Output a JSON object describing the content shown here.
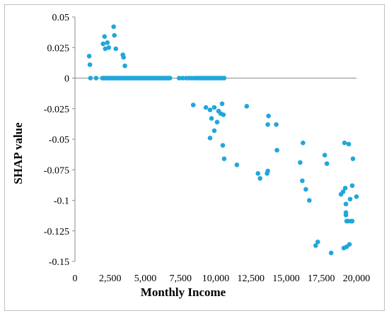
{
  "chart_data": {
    "type": "scatter",
    "title": "",
    "xlabel": "Monthly Income",
    "ylabel": "SHAP value",
    "xlim": [
      0,
      20000
    ],
    "ylim": [
      -0.15,
      0.05
    ],
    "x_ticks": [
      0,
      2500,
      5000,
      7500,
      10000,
      12500,
      15000,
      17500,
      20000
    ],
    "x_tick_labels": [
      "0",
      "2,500",
      "5,000",
      "7,500",
      "10,000",
      "12,500",
      "15,000",
      "17,500",
      "20,000"
    ],
    "y_ticks": [
      0.05,
      0.025,
      0,
      -0.025,
      -0.05,
      -0.075,
      -0.1,
      -0.125,
      -0.15
    ],
    "y_tick_labels": [
      "0.05",
      "0.025",
      "0",
      "-0.025",
      "-0.05",
      "-0.075",
      "-0.1",
      "-0.125",
      "-0.15"
    ],
    "grid": false,
    "legend": "none",
    "marker_color": "#1fa7dc",
    "points": [
      [
        1010,
        0.018
      ],
      [
        1060,
        0.011
      ],
      [
        1100,
        0
      ],
      [
        1500,
        0
      ],
      [
        2000,
        0.028
      ],
      [
        2100,
        0.034
      ],
      [
        2150,
        0.024
      ],
      [
        2300,
        0.029
      ],
      [
        2400,
        0.025
      ],
      [
        2750,
        0.042
      ],
      [
        2800,
        0.035
      ],
      [
        2900,
        0.024
      ],
      [
        3400,
        0.019
      ],
      [
        3450,
        0.017
      ],
      [
        3550,
        0.01
      ],
      [
        1950,
        0
      ],
      [
        2050,
        0
      ],
      [
        2150,
        0
      ],
      [
        2250,
        0
      ],
      [
        2350,
        0
      ],
      [
        2450,
        0
      ],
      [
        2550,
        0
      ],
      [
        2650,
        0
      ],
      [
        2750,
        0
      ],
      [
        2850,
        0
      ],
      [
        2950,
        0
      ],
      [
        3050,
        0
      ],
      [
        3150,
        0
      ],
      [
        3250,
        0
      ],
      [
        3350,
        0
      ],
      [
        3450,
        0
      ],
      [
        3550,
        0
      ],
      [
        3650,
        0
      ],
      [
        3750,
        0
      ],
      [
        3850,
        0
      ],
      [
        3950,
        0
      ],
      [
        4050,
        0
      ],
      [
        4150,
        0
      ],
      [
        4250,
        0
      ],
      [
        4350,
        0
      ],
      [
        4450,
        0
      ],
      [
        4550,
        0
      ],
      [
        4650,
        0
      ],
      [
        4750,
        0
      ],
      [
        4850,
        0
      ],
      [
        4950,
        0
      ],
      [
        5050,
        0
      ],
      [
        5150,
        0
      ],
      [
        5250,
        0
      ],
      [
        5350,
        0
      ],
      [
        5450,
        0
      ],
      [
        5550,
        0
      ],
      [
        5650,
        0
      ],
      [
        5750,
        0
      ],
      [
        5850,
        0
      ],
      [
        5950,
        0
      ],
      [
        6050,
        0
      ],
      [
        6150,
        0
      ],
      [
        6250,
        0
      ],
      [
        6350,
        0
      ],
      [
        6450,
        0
      ],
      [
        6550,
        0
      ],
      [
        6650,
        0
      ],
      [
        6750,
        0
      ],
      [
        7400,
        0
      ],
      [
        7650,
        0
      ],
      [
        7900,
        0
      ],
      [
        8100,
        0
      ],
      [
        8300,
        0
      ],
      [
        8500,
        0
      ],
      [
        8650,
        0
      ],
      [
        8800,
        0
      ],
      [
        8950,
        0
      ],
      [
        9100,
        0
      ],
      [
        9250,
        0
      ],
      [
        9400,
        0
      ],
      [
        9550,
        0
      ],
      [
        9700,
        0
      ],
      [
        9850,
        0
      ],
      [
        10000,
        0
      ],
      [
        10150,
        0
      ],
      [
        10300,
        0
      ],
      [
        10450,
        0
      ],
      [
        10600,
        0
      ],
      [
        8400,
        -0.022
      ],
      [
        9300,
        -0.024
      ],
      [
        9600,
        -0.026
      ],
      [
        9700,
        -0.033
      ],
      [
        9900,
        -0.024
      ],
      [
        10200,
        -0.027
      ],
      [
        10350,
        -0.029
      ],
      [
        10450,
        -0.021
      ],
      [
        10550,
        -0.03
      ],
      [
        9600,
        -0.049
      ],
      [
        9900,
        -0.043
      ],
      [
        10100,
        -0.036
      ],
      [
        10500,
        -0.055
      ],
      [
        10600,
        -0.066
      ],
      [
        11500,
        -0.071
      ],
      [
        12200,
        -0.023
      ],
      [
        13000,
        -0.078
      ],
      [
        13150,
        -0.082
      ],
      [
        13650,
        -0.078
      ],
      [
        13700,
        -0.076
      ],
      [
        13700,
        -0.038
      ],
      [
        13750,
        -0.031
      ],
      [
        14300,
        -0.038
      ],
      [
        14350,
        -0.059
      ],
      [
        16000,
        -0.069
      ],
      [
        16150,
        -0.084
      ],
      [
        16200,
        -0.053
      ],
      [
        16400,
        -0.091
      ],
      [
        16650,
        -0.1
      ],
      [
        17100,
        -0.137
      ],
      [
        17250,
        -0.134
      ],
      [
        17750,
        -0.063
      ],
      [
        17900,
        -0.07
      ],
      [
        18200,
        -0.143
      ],
      [
        18900,
        -0.095
      ],
      [
        19050,
        -0.093
      ],
      [
        19100,
        -0.139
      ],
      [
        19150,
        -0.053
      ],
      [
        19200,
        -0.09
      ],
      [
        19250,
        -0.103
      ],
      [
        19250,
        -0.11
      ],
      [
        19250,
        -0.112
      ],
      [
        19300,
        -0.117
      ],
      [
        19300,
        -0.138
      ],
      [
        19400,
        -0.117
      ],
      [
        19450,
        -0.054
      ],
      [
        19500,
        -0.136
      ],
      [
        19550,
        -0.099
      ],
      [
        19600,
        -0.117
      ],
      [
        19700,
        -0.117
      ],
      [
        19700,
        -0.088
      ],
      [
        19750,
        -0.066
      ],
      [
        20000,
        -0.097
      ]
    ]
  }
}
